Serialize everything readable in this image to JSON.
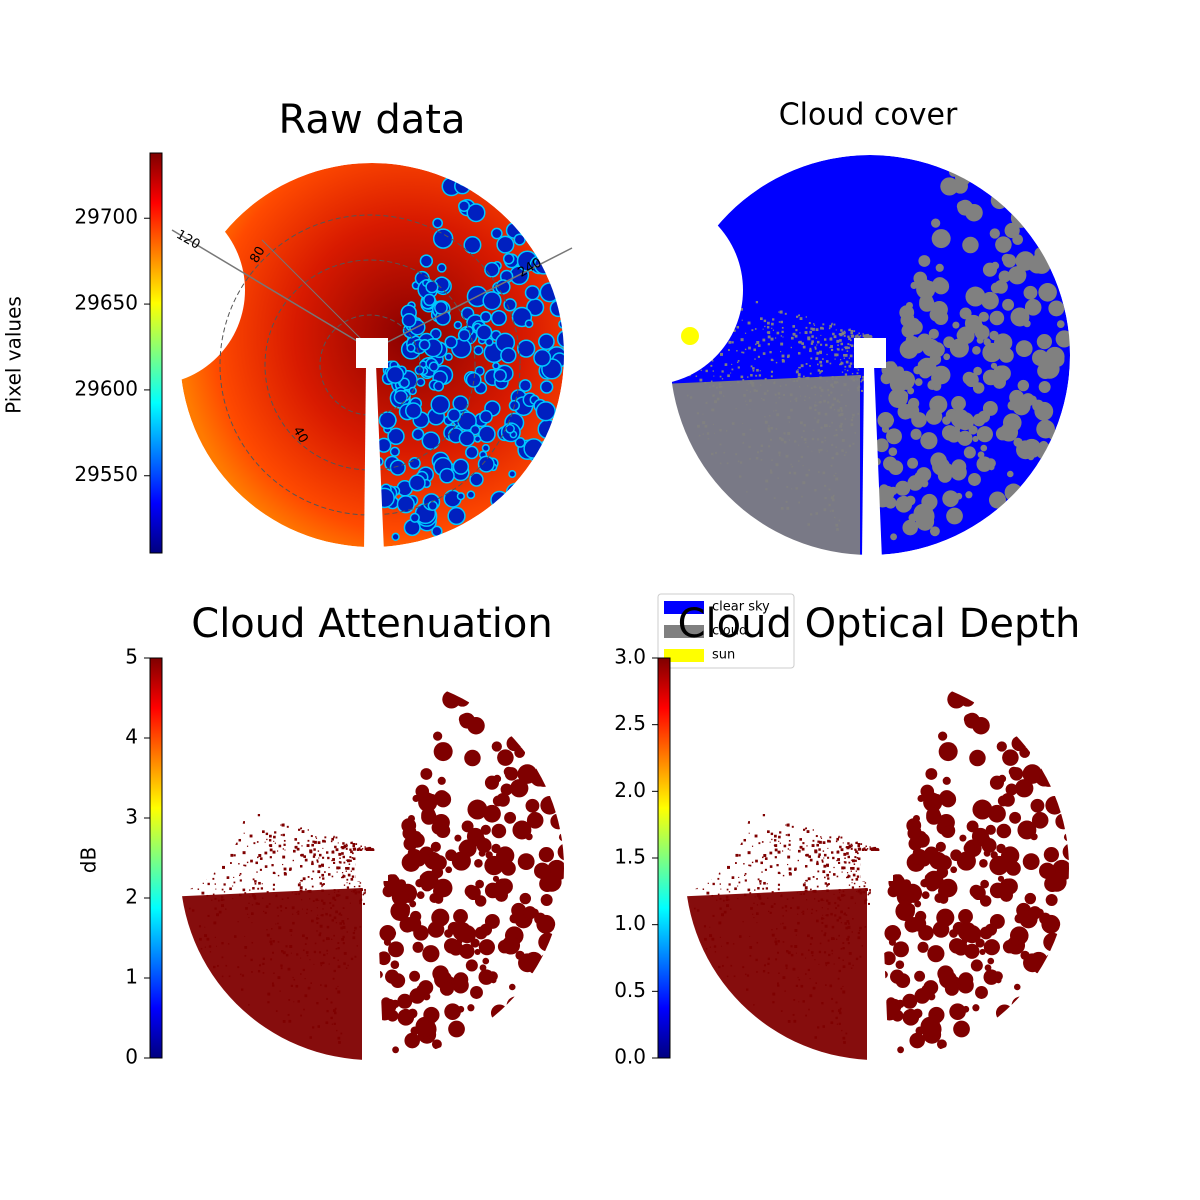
{
  "chart_data": [
    {
      "type": "heatmap",
      "title": "Raw data",
      "colormap": "jet",
      "colorbar": {
        "label": "Pixel values",
        "lim": [
          29505,
          29738
        ],
        "ticks": [
          29550,
          29600,
          29650,
          29700
        ]
      },
      "polar_labels": [
        "120",
        "80",
        "240",
        "40"
      ]
    },
    {
      "type": "classification",
      "title": "Cloud cover",
      "legend": [
        {
          "name": "clear sky",
          "color": "#0000ff"
        },
        {
          "name": "cloud",
          "color": "#808080"
        },
        {
          "name": "sun",
          "color": "#ffff00"
        }
      ]
    },
    {
      "type": "heatmap",
      "title": "Cloud Attenuation",
      "colormap": "jet",
      "colorbar": {
        "label": "dB",
        "lim": [
          0,
          5
        ],
        "ticks": [
          0,
          1,
          2,
          3,
          4,
          5
        ]
      }
    },
    {
      "type": "heatmap",
      "title": "Cloud Optical Depth",
      "colormap": "jet",
      "colorbar": {
        "lim": [
          0,
          3
        ],
        "ticks": [
          {
            "value": 0,
            "label": "0.0"
          },
          0.5,
          {
            "value": 1,
            "label": "1.0"
          },
          1.5,
          {
            "value": 2,
            "label": "2.0"
          },
          2.5,
          {
            "value": 3,
            "label": "3.0"
          }
        ]
      }
    }
  ]
}
